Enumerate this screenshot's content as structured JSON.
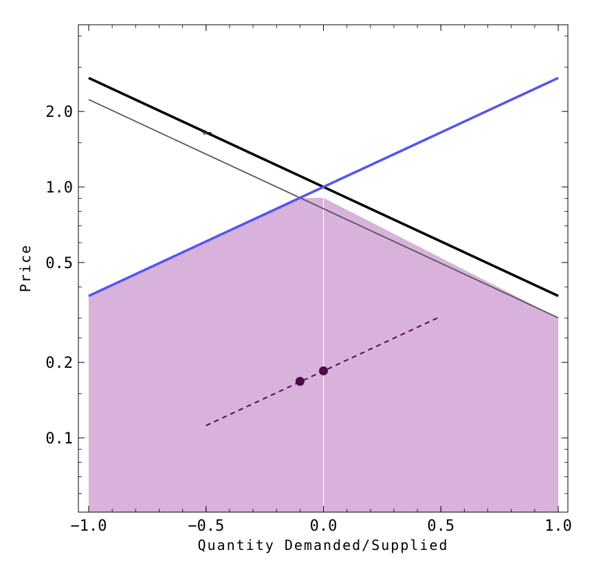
{
  "chart_data": {
    "type": "line",
    "title": "",
    "xlabel": "Quantity Demanded/Supplied",
    "ylabel": "Price",
    "xlim": [
      -1.05,
      1.05
    ],
    "ylim": [
      0.05,
      4.0
    ],
    "y_scale": "log",
    "grid": false,
    "x_ticks": [
      {
        "value": -1.0,
        "label": "−1.0"
      },
      {
        "value": -0.5,
        "label": "−0.5"
      },
      {
        "value": 0.0,
        "label": "0.0"
      },
      {
        "value": 0.5,
        "label": "0.5"
      },
      {
        "value": 1.0,
        "label": "1.0"
      }
    ],
    "y_ticks": [
      {
        "value": 0.1,
        "label": "0.1"
      },
      {
        "value": 0.2,
        "label": "0.2"
      },
      {
        "value": 0.5,
        "label": "0.5"
      },
      {
        "value": 1.0,
        "label": "1.0"
      },
      {
        "value": 2.0,
        "label": "2.0"
      }
    ],
    "series": [
      {
        "key": "demand",
        "style": "thick",
        "color": "#000000",
        "x": [
          -1.0,
          1.0
        ],
        "y": [
          2.72,
          0.368
        ]
      },
      {
        "key": "demand_shifted",
        "style": "thin",
        "color": "#555555",
        "x": [
          -1.0,
          1.0
        ],
        "y": [
          2.23,
          0.301
        ]
      },
      {
        "key": "supply",
        "style": "thick",
        "color": "#5555ee",
        "x": [
          -1.0,
          1.0
        ],
        "y": [
          0.368,
          2.72
        ]
      },
      {
        "key": "ratio",
        "style": "dashed",
        "color": "#4b0a4b",
        "x": [
          -0.5,
          0.5
        ],
        "y": [
          0.112,
          0.305
        ]
      }
    ],
    "shaded_region": {
      "color": "#d8b2da",
      "x": [
        -1.0,
        -0.1,
        0.0,
        1.0
      ],
      "y": [
        0.368,
        0.905,
        0.905,
        0.301
      ]
    },
    "points": [
      {
        "x": -0.1,
        "y": 0.168,
        "color": "#4b0a4b"
      },
      {
        "x": 0.0,
        "y": 0.185,
        "color": "#4b0a4b"
      }
    ],
    "vertical_marker": {
      "x": 0.0,
      "color": "#ffffff"
    },
    "annotations": [
      {
        "text": "←",
        "x": -0.5,
        "y": 1.65
      }
    ]
  }
}
